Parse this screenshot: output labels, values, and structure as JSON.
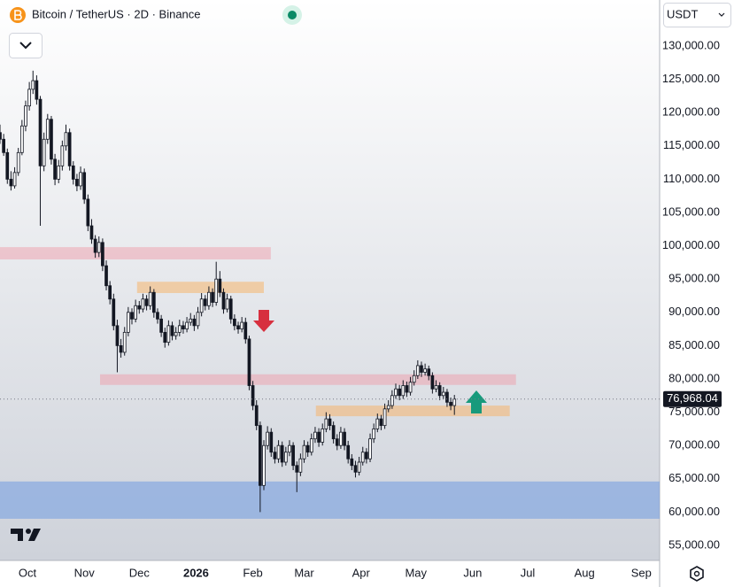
{
  "chart_data": {
    "type": "candlestick",
    "title": "Bitcoin / TetherUS · 2D · Binance",
    "currency": "USDT",
    "last_price_label": "76,968.04",
    "xlim": [
      0,
      180
    ],
    "ylim": [
      52739,
      136915
    ],
    "grid": false,
    "up_color": "#ffffff",
    "down_color": "#131722",
    "wick_color": "#131722",
    "xticks": [
      {
        "value": 7.5,
        "label": "Oct"
      },
      {
        "value": 23,
        "label": "Nov"
      },
      {
        "value": 38,
        "label": "Dec"
      },
      {
        "value": 53.5,
        "label": "2026"
      },
      {
        "value": 69,
        "label": "Feb"
      },
      {
        "value": 83,
        "label": "Mar"
      },
      {
        "value": 98.5,
        "label": "Apr"
      },
      {
        "value": 113.5,
        "label": "May"
      },
      {
        "value": 129,
        "label": "Jun"
      },
      {
        "value": 144,
        "label": "Jul"
      },
      {
        "value": 159.5,
        "label": "Aug"
      },
      {
        "value": 175,
        "label": "Sep"
      }
    ],
    "yticks": [
      {
        "value": 55000,
        "label": "55,000.00"
      },
      {
        "value": 60000,
        "label": "60,000.00"
      },
      {
        "value": 65000,
        "label": "65,000.00"
      },
      {
        "value": 70000,
        "label": "70,000.00"
      },
      {
        "value": 75000,
        "label": "75,000.00"
      },
      {
        "value": 80000,
        "label": "80,000.00"
      },
      {
        "value": 85000,
        "label": "85,000.00"
      },
      {
        "value": 90000,
        "label": "90,000.00"
      },
      {
        "value": 95000,
        "label": "95,000.00"
      },
      {
        "value": 100000,
        "label": "100,000.00"
      },
      {
        "value": 105000,
        "label": "105,000.00"
      },
      {
        "value": 110000,
        "label": "110,000.00"
      },
      {
        "value": 115000,
        "label": "115,000.00"
      },
      {
        "value": 120000,
        "label": "120,000.00"
      },
      {
        "value": 125000,
        "label": "125,000.00"
      },
      {
        "value": 130000,
        "label": "130,000.00"
      }
    ],
    "zones": [
      {
        "x": [
          0,
          73.9
        ],
        "y": [
          97950,
          99800
        ],
        "color": "rgba(240,150,165,0.45)"
      },
      {
        "x": [
          37.4,
          72
        ],
        "y": [
          92900,
          94600
        ],
        "color": "rgba(245,180,110,0.55)"
      },
      {
        "x": [
          27.3,
          140.8
        ],
        "y": [
          79100,
          80700
        ],
        "color": "rgba(240,150,165,0.45)"
      },
      {
        "x": [
          86.2,
          139.1
        ],
        "y": [
          74400,
          76000
        ],
        "color": "rgba(245,180,110,0.55)"
      },
      {
        "x": [
          0,
          180
        ],
        "y": [
          59000,
          64600
        ],
        "color": "rgba(120,160,225,0.6)"
      }
    ],
    "x": [
      0,
      1,
      2,
      3,
      4,
      5,
      6,
      7,
      8,
      9,
      10,
      11,
      12,
      13,
      14,
      15,
      16,
      17,
      18,
      19,
      20,
      21,
      22,
      23,
      24,
      25,
      26,
      27,
      28,
      29,
      30,
      31,
      32,
      33,
      34,
      35,
      36,
      37,
      38,
      39,
      40,
      41,
      42,
      43,
      44,
      45,
      46,
      47,
      48,
      49,
      50,
      51,
      52,
      53,
      54,
      55,
      56,
      57,
      58,
      59,
      60,
      61,
      62,
      63,
      64,
      65,
      66,
      67,
      68,
      69,
      70,
      71,
      72,
      73,
      74,
      75,
      76,
      77,
      78,
      79,
      80,
      81,
      82,
      83,
      84,
      85,
      86,
      87,
      88,
      89,
      90,
      91,
      92,
      93,
      94,
      95,
      96,
      97,
      98,
      99,
      100,
      101,
      102,
      103,
      104,
      105,
      106,
      107,
      108,
      109,
      110,
      111,
      112,
      113,
      114,
      115,
      116,
      117,
      118,
      119,
      120,
      121,
      122,
      123,
      124
    ],
    "ohlc": [
      [
        117000,
        118200,
        115300,
        116000
      ],
      [
        116000,
        116800,
        113500,
        114000
      ],
      [
        114000,
        114600,
        109300,
        110000
      ],
      [
        110000,
        111200,
        108300,
        109000
      ],
      [
        109000,
        111800,
        108600,
        111000
      ],
      [
        111000,
        114700,
        110500,
        114000
      ],
      [
        114000,
        118900,
        113600,
        118000
      ],
      [
        118000,
        121800,
        117200,
        121000
      ],
      [
        121000,
        124600,
        120300,
        123500
      ],
      [
        123500,
        126300,
        122800,
        124800
      ],
      [
        124800,
        125600,
        121200,
        122000
      ],
      [
        122000,
        122500,
        103000,
        112000
      ],
      [
        112000,
        117000,
        111200,
        116000
      ],
      [
        116000,
        119800,
        115300,
        119000
      ],
      [
        119000,
        119500,
        112200,
        113000
      ],
      [
        113000,
        113800,
        109100,
        110000
      ],
      [
        110000,
        112900,
        109400,
        112000
      ],
      [
        112000,
        115800,
        111300,
        115000
      ],
      [
        115000,
        118200,
        114300,
        117000
      ],
      [
        117000,
        117600,
        111300,
        112000
      ],
      [
        112000,
        112700,
        109200,
        110000
      ],
      [
        110000,
        110800,
        108200,
        109000
      ],
      [
        109000,
        111900,
        108400,
        111000
      ],
      [
        111000,
        111600,
        106300,
        107000
      ],
      [
        107000,
        107700,
        102200,
        103000
      ],
      [
        103000,
        104000,
        100300,
        101000
      ],
      [
        101000,
        101600,
        98200,
        99000
      ],
      [
        99000,
        101400,
        98300,
        100500
      ],
      [
        100500,
        101100,
        96200,
        97000
      ],
      [
        97000,
        97800,
        93300,
        94000
      ],
      [
        94000,
        94700,
        91200,
        92000
      ],
      [
        92000,
        92800,
        87300,
        88000
      ],
      [
        88000,
        88900,
        81000,
        85000
      ],
      [
        85000,
        86000,
        83200,
        84000
      ],
      [
        84000,
        87800,
        83500,
        87000
      ],
      [
        87000,
        90800,
        86400,
        90000
      ],
      [
        90000,
        90600,
        88200,
        89000
      ],
      [
        89000,
        91900,
        88500,
        91000
      ],
      [
        91000,
        91700,
        89800,
        90500
      ],
      [
        90500,
        92800,
        90000,
        92000
      ],
      [
        92000,
        92600,
        90300,
        91000
      ],
      [
        91000,
        93900,
        90400,
        93000
      ],
      [
        93000,
        93500,
        89200,
        90000
      ],
      [
        90000,
        90600,
        88300,
        89000
      ],
      [
        89000,
        89600,
        86300,
        87000
      ],
      [
        87000,
        87700,
        84700,
        85500
      ],
      [
        85500,
        88800,
        85000,
        88000
      ],
      [
        88000,
        88600,
        85800,
        86500
      ],
      [
        86500,
        87800,
        85900,
        87000
      ],
      [
        87000,
        88900,
        86400,
        88000
      ],
      [
        88000,
        88700,
        86800,
        87500
      ],
      [
        87500,
        89300,
        87000,
        88500
      ],
      [
        88500,
        89900,
        88000,
        89000
      ],
      [
        89000,
        89600,
        87200,
        88000
      ],
      [
        88000,
        90800,
        87500,
        90000
      ],
      [
        90000,
        92900,
        89400,
        92000
      ],
      [
        92000,
        92600,
        90300,
        91000
      ],
      [
        91000,
        93900,
        90400,
        93000
      ],
      [
        93000,
        93600,
        90800,
        91500
      ],
      [
        91500,
        97600,
        91000,
        95000
      ],
      [
        95000,
        96200,
        92300,
        93000
      ],
      [
        93000,
        93600,
        89800,
        90500
      ],
      [
        90500,
        92800,
        90000,
        92000
      ],
      [
        92000,
        92500,
        88300,
        89000
      ],
      [
        89000,
        89700,
        87300,
        88000
      ],
      [
        88000,
        88600,
        86800,
        87500
      ],
      [
        87500,
        89300,
        87000,
        88500
      ],
      [
        88500,
        89200,
        85300,
        86000
      ],
      [
        86000,
        86500,
        78300,
        79000
      ],
      [
        79000,
        79700,
        75300,
        76000
      ],
      [
        76000,
        76800,
        72300,
        73000
      ],
      [
        73000,
        73600,
        60000,
        64000
      ],
      [
        64000,
        70800,
        63300,
        70000
      ],
      [
        70000,
        72900,
        69400,
        72000
      ],
      [
        72000,
        72600,
        68300,
        69000
      ],
      [
        69000,
        69800,
        67300,
        68000
      ],
      [
        68000,
        70800,
        67400,
        70000
      ],
      [
        70000,
        70600,
        66800,
        67500
      ],
      [
        67500,
        69800,
        67000,
        69000
      ],
      [
        69000,
        70800,
        68400,
        70000
      ],
      [
        70000,
        70500,
        66300,
        67000
      ],
      [
        67000,
        67600,
        63000,
        66000
      ],
      [
        66000,
        68800,
        65400,
        68000
      ],
      [
        68000,
        70800,
        67400,
        70000
      ],
      [
        70000,
        70600,
        68300,
        69000
      ],
      [
        69000,
        71800,
        68500,
        71000
      ],
      [
        71000,
        72800,
        70400,
        72000
      ],
      [
        72000,
        72600,
        69800,
        70500
      ],
      [
        70500,
        73300,
        70000,
        72500
      ],
      [
        72500,
        75000,
        72000,
        74000
      ],
      [
        74000,
        74700,
        72300,
        73000
      ],
      [
        73000,
        73600,
        70300,
        71000
      ],
      [
        71000,
        71700,
        69300,
        70000
      ],
      [
        70000,
        72800,
        69500,
        72000
      ],
      [
        72000,
        72600,
        69300,
        70000
      ],
      [
        70000,
        70700,
        67300,
        68000
      ],
      [
        68000,
        68700,
        66300,
        67000
      ],
      [
        67000,
        67700,
        65200,
        66000
      ],
      [
        66000,
        68300,
        65500,
        67500
      ],
      [
        67500,
        69800,
        67000,
        69000
      ],
      [
        69000,
        69600,
        67300,
        68000
      ],
      [
        68000,
        71800,
        67500,
        71000
      ],
      [
        71000,
        73300,
        70400,
        72500
      ],
      [
        72500,
        74800,
        72000,
        74000
      ],
      [
        74000,
        74600,
        72300,
        73000
      ],
      [
        73000,
        76300,
        72500,
        75500
      ],
      [
        75500,
        76800,
        75000,
        76000
      ],
      [
        76000,
        78300,
        75500,
        77500
      ],
      [
        77500,
        79300,
        77000,
        78500
      ],
      [
        78500,
        79100,
        76800,
        77500
      ],
      [
        77500,
        79800,
        77000,
        79000
      ],
      [
        79000,
        79600,
        77300,
        78000
      ],
      [
        78000,
        80300,
        77500,
        79500
      ],
      [
        79500,
        81300,
        79000,
        80500
      ],
      [
        80500,
        82800,
        80000,
        82000
      ],
      [
        82000,
        82600,
        80300,
        81000
      ],
      [
        81000,
        82300,
        80500,
        81500
      ],
      [
        81500,
        82000,
        79800,
        80500
      ],
      [
        80500,
        81000,
        77800,
        78500
      ],
      [
        78500,
        79800,
        78000,
        79000
      ],
      [
        79000,
        79500,
        76800,
        77500
      ],
      [
        77500,
        78800,
        77000,
        78000
      ],
      [
        78000,
        78500,
        75800,
        76500
      ],
      [
        76500,
        77200,
        75300,
        76000
      ],
      [
        76000,
        77600,
        74600,
        76968.04
      ]
    ]
  }
}
